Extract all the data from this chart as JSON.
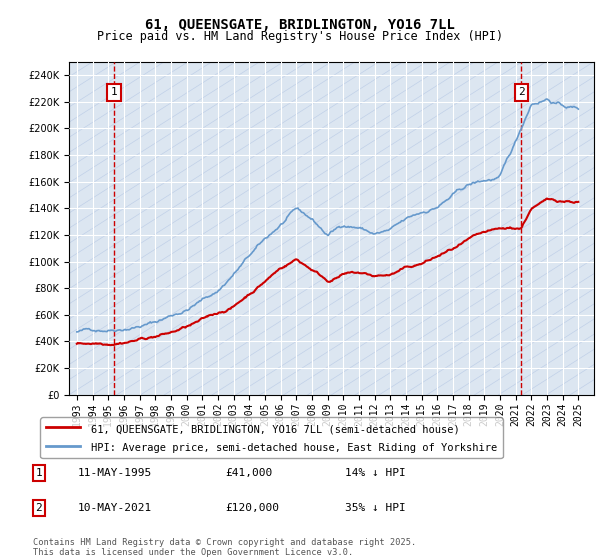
{
  "title": "61, QUEENSGATE, BRIDLINGTON, YO16 7LL",
  "subtitle": "Price paid vs. HM Land Registry's House Price Index (HPI)",
  "bg_color": "#dce6f1",
  "red_line_color": "#cc0000",
  "blue_line_color": "#6699cc",
  "marker1_x_year": 1995.36,
  "marker1_y": 41000,
  "marker1_label": "1",
  "marker2_x_year": 2021.36,
  "marker2_y": 120000,
  "marker2_label": "2",
  "legend_line1": "61, QUEENSGATE, BRIDLINGTON, YO16 7LL (semi-detached house)",
  "legend_line2": "HPI: Average price, semi-detached house, East Riding of Yorkshire",
  "ann1_date": "11-MAY-1995",
  "ann1_price": "£41,000",
  "ann1_hpi": "14% ↓ HPI",
  "ann2_date": "10-MAY-2021",
  "ann2_price": "£120,000",
  "ann2_hpi": "35% ↓ HPI",
  "footer": "Contains HM Land Registry data © Crown copyright and database right 2025.\nThis data is licensed under the Open Government Licence v3.0.",
  "ylim": [
    0,
    250000
  ],
  "yticks": [
    0,
    20000,
    40000,
    60000,
    80000,
    100000,
    120000,
    140000,
    160000,
    180000,
    200000,
    220000,
    240000
  ],
  "xlim": [
    1992.5,
    2026
  ],
  "xticks": [
    1993,
    1994,
    1995,
    1996,
    1997,
    1998,
    1999,
    2000,
    2001,
    2002,
    2003,
    2004,
    2005,
    2006,
    2007,
    2008,
    2009,
    2010,
    2011,
    2012,
    2013,
    2014,
    2015,
    2016,
    2017,
    2018,
    2019,
    2020,
    2021,
    2022,
    2023,
    2024,
    2025
  ]
}
